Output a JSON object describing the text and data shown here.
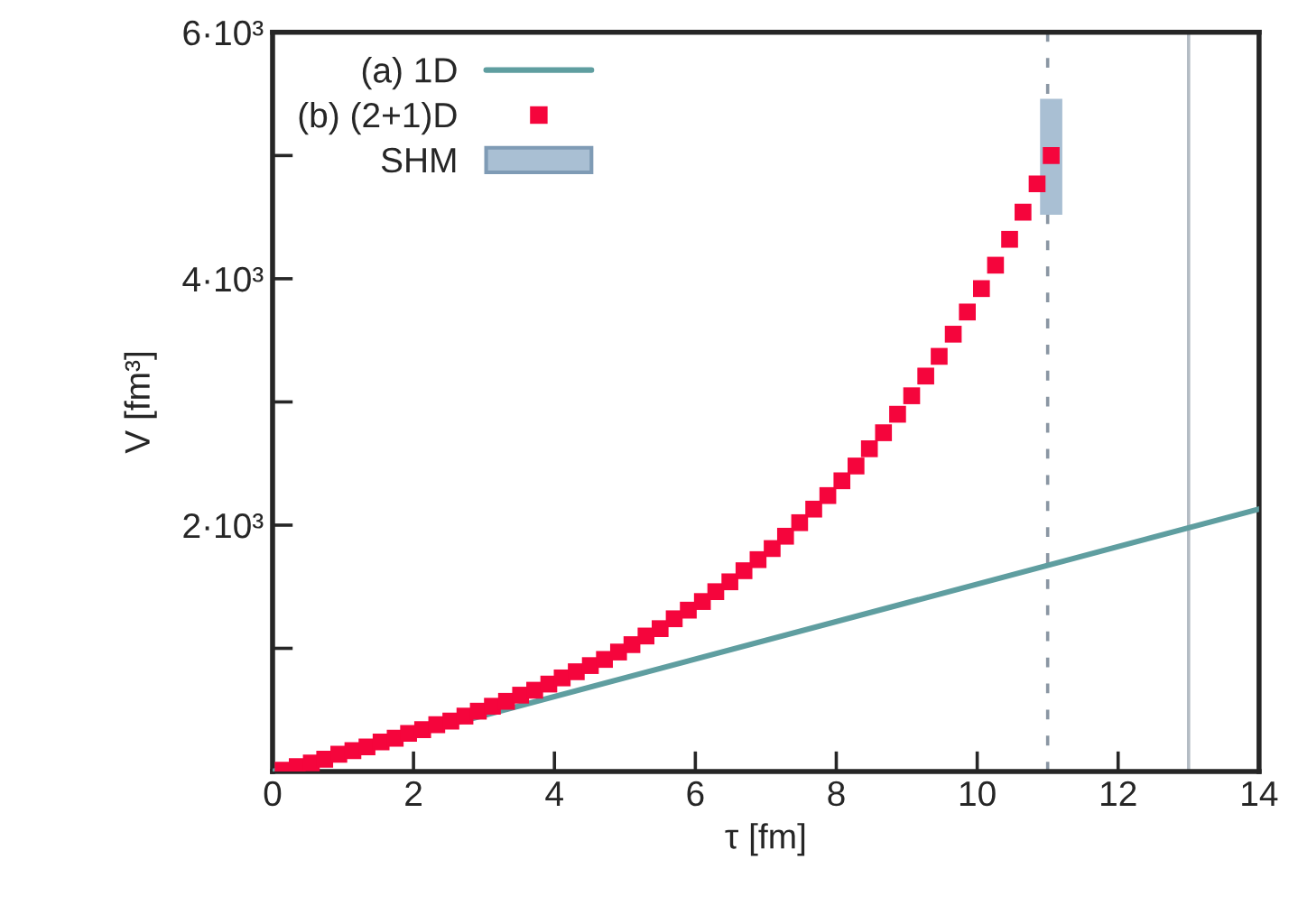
{
  "chart_data": {
    "type": "scatter",
    "xlabel": "τ [fm]",
    "ylabel": "V [fm³]",
    "xlim": [
      0,
      14
    ],
    "xticks": [
      0,
      2,
      4,
      6,
      8,
      10,
      12,
      14
    ],
    "ylim": [
      0,
      6000
    ],
    "yticks": [
      {
        "value": 1000,
        "label": null
      },
      {
        "value": 2000,
        "label": "2·10³"
      },
      {
        "value": 3000,
        "label": null
      },
      {
        "value": 4000,
        "label": "4·10³"
      },
      {
        "value": 5000,
        "label": null
      },
      {
        "value": 6000,
        "label": "6·10³"
      }
    ],
    "grid": false,
    "legend": "top left",
    "series": [
      {
        "name": "(a) 1D",
        "type": "line",
        "color": "#5f9ea0",
        "marker": "none",
        "line_style": "solid",
        "x": [
          0,
          14
        ],
        "values": [
          0,
          2130
        ]
      },
      {
        "name": "(b) (2+1)D",
        "color": "#f5053c",
        "marker": "square",
        "x": [
          0.15,
          0.35,
          0.55,
          0.74,
          0.94,
          1.14,
          1.34,
          1.54,
          1.74,
          1.93,
          2.13,
          2.33,
          2.53,
          2.73,
          2.92,
          3.12,
          3.32,
          3.52,
          3.72,
          3.92,
          4.11,
          4.31,
          4.51,
          4.71,
          4.91,
          5.1,
          5.3,
          5.5,
          5.7,
          5.9,
          6.1,
          6.29,
          6.49,
          6.69,
          6.89,
          7.09,
          7.28,
          7.48,
          7.68,
          7.88,
          8.08,
          8.28,
          8.47,
          8.67,
          8.87,
          9.07,
          9.27,
          9.46,
          9.66,
          9.86,
          10.06,
          10.26,
          10.46,
          10.65,
          10.85,
          11.05
        ],
        "values": [
          10,
          40,
          70,
          100,
          140,
          170,
          200,
          240,
          270,
          310,
          340,
          380,
          410,
          450,
          490,
          530,
          570,
          620,
          660,
          710,
          760,
          810,
          860,
          910,
          970,
          1030,
          1100,
          1160,
          1240,
          1310,
          1380,
          1460,
          1540,
          1630,
          1720,
          1810,
          1910,
          2020,
          2130,
          2240,
          2360,
          2480,
          2620,
          2750,
          2900,
          3050,
          3210,
          3370,
          3550,
          3730,
          3920,
          4110,
          4320,
          4540,
          4770,
          5000
        ]
      },
      {
        "name": "SHM",
        "type": "bar",
        "color": "#a9bfd3",
        "x": [
          11.05
        ],
        "base": [
          4530
        ],
        "values": [
          920
        ]
      }
    ],
    "ref_lines": [
      {
        "axis": "x",
        "value": 11,
        "color": "#8a96a3",
        "line_style": "dashed"
      },
      {
        "axis": "x",
        "value": 13,
        "color": "#b4bcc4",
        "line_style": "solid"
      }
    ]
  }
}
